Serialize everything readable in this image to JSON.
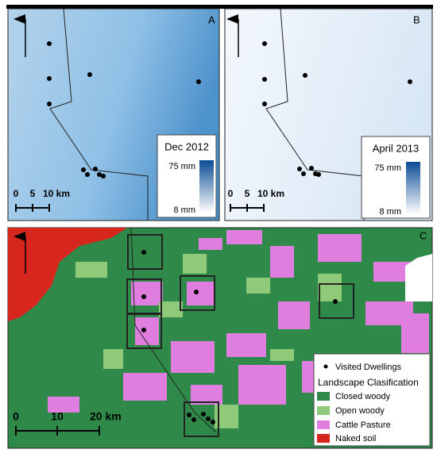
{
  "panels": [
    {
      "letter": "A",
      "legend": {
        "title": "Dec 2012",
        "max": "75 mm",
        "min": "8 mm"
      },
      "scale": [
        "0",
        "5",
        "10 km"
      ]
    },
    {
      "letter": "B",
      "legend": {
        "title": "April 2013",
        "max": "75 mm",
        "min": "8 mm"
      },
      "scale": [
        "0",
        "5",
        "10 km"
      ]
    },
    {
      "letter": "C",
      "scale": [
        "0",
        "10",
        "20 km"
      ],
      "legend": {
        "dwellings": "Visited Dwellings",
        "title": "Landscape Clasification",
        "items": [
          "Closed woody",
          "Open woody",
          "Cattle Pasture",
          "Naked soil"
        ]
      }
    }
  ]
}
